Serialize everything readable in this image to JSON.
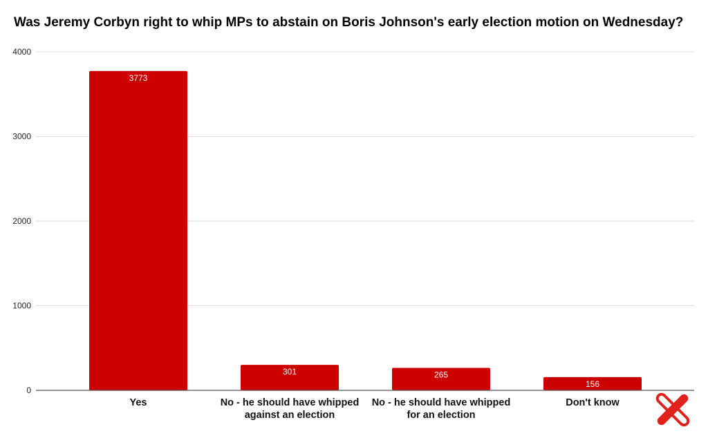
{
  "chart_data": {
    "type": "bar",
    "title": "Was Jeremy Corbyn right to whip MPs to abstain on Boris Johnson's early election motion on Wednesday?",
    "xlabel": "",
    "ylabel": "",
    "categories": [
      [
        "Yes"
      ],
      [
        "No - he should have whipped",
        "against an election"
      ],
      [
        "No - he should have whipped",
        "for an election"
      ],
      [
        "Don't know"
      ]
    ],
    "values": [
      3773,
      301,
      265,
      156
    ],
    "data_labels": [
      "3773",
      "301",
      "265",
      "156"
    ],
    "ylim": [
      0,
      4000
    ],
    "yticks": [
      0,
      1000,
      2000,
      3000,
      4000
    ],
    "ytick_labels": [
      "0",
      "1000",
      "2000",
      "3000",
      "4000"
    ],
    "grid": true,
    "legend": "none",
    "bar_color": "#cc0000",
    "grid_color": "#dddddd",
    "axis_color": "#555555"
  },
  "logo": {
    "icon": "red-cross-logo-icon",
    "color": "#e0201a"
  }
}
